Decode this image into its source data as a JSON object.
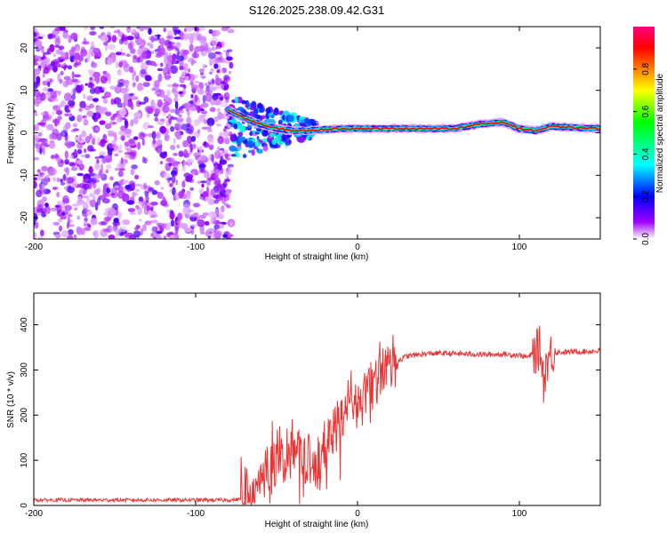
{
  "title": "S126.2025.238.09.42.G31",
  "chart_data": [
    {
      "type": "heatmap",
      "name": "spectrogram",
      "xlabel": "Height of straight line (km)",
      "ylabel": "Frequency (Hz)",
      "xlim": [
        -200,
        150
      ],
      "ylim": [
        -25,
        25
      ],
      "xticks": [
        -200,
        -100,
        0,
        100
      ],
      "yticks": [
        -20,
        -10,
        0,
        10,
        20
      ],
      "colorbar": {
        "label": "Normalized spectral amplitude",
        "range": [
          0.0,
          1.0
        ],
        "ticks": [
          0.0,
          0.2,
          0.4,
          0.6,
          0.8
        ],
        "tick_labels": [
          "0.0",
          "0.2",
          "0.4",
          "0.6",
          "0.8"
        ],
        "colors": [
          "#ffffff",
          "#a000ff",
          "#0000ff",
          "#00ffff",
          "#00ff00",
          "#ffff00",
          "#ff8000",
          "#ff0000",
          "#ff0080"
        ]
      },
      "regions": [
        {
          "name": "noise",
          "x": [
            -200,
            -78
          ],
          "freq": [
            -25,
            25
          ],
          "amplitude": [
            0.05,
            0.35
          ]
        },
        {
          "name": "transition",
          "x": [
            -78,
            -25
          ],
          "freq": [
            -10,
            10
          ],
          "amplitude": [
            0.1,
            0.5
          ]
        },
        {
          "name": "signal-band",
          "x": [
            -25,
            150
          ],
          "freq": [
            -1,
            3
          ],
          "amplitude": [
            0.3,
            1.0
          ]
        }
      ],
      "track": [
        {
          "x": -78,
          "f": 5.0
        },
        {
          "x": -70,
          "f": 3.5
        },
        {
          "x": -60,
          "f": 2.0
        },
        {
          "x": -50,
          "f": 1.0
        },
        {
          "x": -40,
          "f": 0.5
        },
        {
          "x": -30,
          "f": 0.5
        },
        {
          "x": -20,
          "f": 0.8
        },
        {
          "x": -10,
          "f": 1.0
        },
        {
          "x": 0,
          "f": 1.0
        },
        {
          "x": 20,
          "f": 1.0
        },
        {
          "x": 40,
          "f": 1.0
        },
        {
          "x": 60,
          "f": 1.0
        },
        {
          "x": 75,
          "f": 2.0
        },
        {
          "x": 90,
          "f": 2.5
        },
        {
          "x": 100,
          "f": 1.0
        },
        {
          "x": 110,
          "f": 0.5
        },
        {
          "x": 120,
          "f": 1.5
        },
        {
          "x": 135,
          "f": 1.2
        },
        {
          "x": 150,
          "f": 1.0
        }
      ]
    },
    {
      "type": "line",
      "name": "snr",
      "xlabel": "Height of straight line (km)",
      "ylabel": "SNR (10 * v/v)",
      "xlim": [
        -200,
        150
      ],
      "ylim": [
        0,
        470
      ],
      "xticks": [
        -200,
        -100,
        0,
        100
      ],
      "yticks": [
        0,
        100,
        200,
        300,
        400
      ],
      "series": [
        {
          "name": "SNR",
          "color": "#ee3333",
          "x": [
            -200,
            -170,
            -140,
            -110,
            -80,
            -70,
            -65,
            -60,
            -55,
            -50,
            -45,
            -40,
            -35,
            -30,
            -25,
            -20,
            -15,
            -10,
            -5,
            0,
            5,
            10,
            15,
            20,
            25,
            30,
            40,
            50,
            60,
            70,
            80,
            90,
            100,
            105,
            110,
            113,
            115,
            117,
            120,
            130,
            140,
            150
          ],
          "y": [
            12,
            12,
            12,
            12,
            12,
            14,
            25,
            50,
            80,
            100,
            105,
            110,
            115,
            95,
            70,
            130,
            170,
            200,
            240,
            220,
            250,
            270,
            290,
            310,
            320,
            330,
            335,
            337,
            336,
            335,
            334,
            335,
            333,
            328,
            340,
            350,
            275,
            320,
            338,
            340,
            341,
            342
          ]
        }
      ]
    }
  ]
}
